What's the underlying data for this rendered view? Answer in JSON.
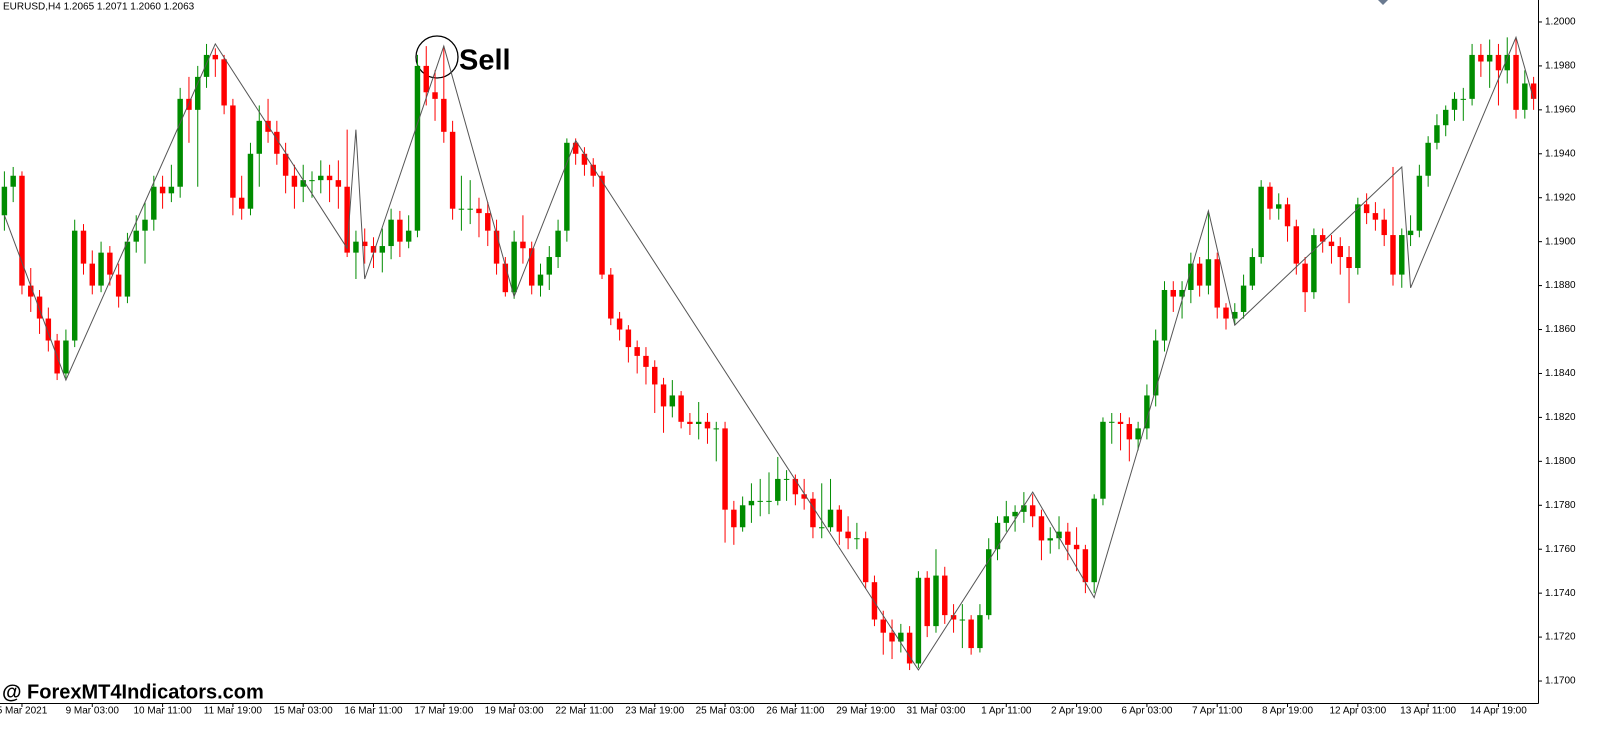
{
  "chart_data": {
    "type": "candlestick",
    "title": "EURUSD,H4  1.2065 1.2071 1.2060 1.2063",
    "watermark": "@ ForexMT4Indicators.com",
    "annotation": "Sell",
    "up_color": "#008c00",
    "down_color": "#ff0000",
    "ylim": [
      1.169,
      1.201
    ],
    "yticks": [
      {
        "value": 1.17,
        "label": "1.1700"
      },
      {
        "value": 1.172,
        "label": "1.1720"
      },
      {
        "value": 1.174,
        "label": "1.1740"
      },
      {
        "value": 1.176,
        "label": "1.1760"
      },
      {
        "value": 1.178,
        "label": "1.1780"
      },
      {
        "value": 1.18,
        "label": "1.1800"
      },
      {
        "value": 1.182,
        "label": "1.1820"
      },
      {
        "value": 1.184,
        "label": "1.1840"
      },
      {
        "value": 1.186,
        "label": "1.1860"
      },
      {
        "value": 1.188,
        "label": "1.1880"
      },
      {
        "value": 1.19,
        "label": "1.1900"
      },
      {
        "value": 1.192,
        "label": "1.1920"
      },
      {
        "value": 1.194,
        "label": "1.1940"
      },
      {
        "value": 1.196,
        "label": "1.1960"
      },
      {
        "value": 1.198,
        "label": "1.1980"
      },
      {
        "value": 1.2,
        "label": "1.2000"
      }
    ],
    "categories": [
      null,
      null,
      "5 Mar 2021",
      null,
      null,
      null,
      null,
      null,
      null,
      null,
      "9 Mar 03:00",
      null,
      null,
      null,
      null,
      null,
      null,
      null,
      "10 Mar 11:00",
      null,
      null,
      null,
      null,
      null,
      null,
      null,
      "11 Mar 19:00",
      null,
      null,
      null,
      null,
      null,
      null,
      null,
      "15 Mar 03:00",
      null,
      null,
      null,
      null,
      null,
      null,
      null,
      "16 Mar 11:00",
      null,
      null,
      null,
      null,
      null,
      null,
      null,
      "17 Mar 19:00",
      null,
      null,
      null,
      null,
      null,
      null,
      null,
      "19 Mar 03:00",
      null,
      null,
      null,
      null,
      null,
      null,
      null,
      "22 Mar 11:00",
      null,
      null,
      null,
      null,
      null,
      null,
      null,
      "23 Mar 19:00",
      null,
      null,
      null,
      null,
      null,
      null,
      null,
      "25 Mar 03:00",
      null,
      null,
      null,
      null,
      null,
      null,
      null,
      "26 Mar 11:00",
      null,
      null,
      null,
      null,
      null,
      null,
      null,
      "29 Mar 19:00",
      null,
      null,
      null,
      null,
      null,
      null,
      null,
      "31 Mar 03:00",
      null,
      null,
      null,
      null,
      null,
      null,
      null,
      "1 Apr 11:00",
      null,
      null,
      null,
      null,
      null,
      null,
      null,
      "2 Apr 19:00",
      null,
      null,
      null,
      null,
      null,
      null,
      null,
      "6 Apr 03:00",
      null,
      null,
      null,
      null,
      null,
      null,
      null,
      "7 Apr 11:00",
      null,
      null,
      null,
      null,
      null,
      null,
      null,
      "8 Apr 19:00",
      null,
      null,
      null,
      null,
      null,
      null,
      null,
      "12 Apr 03:00",
      null,
      null,
      null,
      null,
      null,
      null,
      null,
      "13 Apr 11:00",
      null,
      null,
      null,
      null,
      null,
      null,
      null,
      "14 Apr 19:00",
      null,
      null,
      null,
      null
    ],
    "ohlc": [
      [
        1.1912,
        1.1932,
        1.1905,
        1.1925
      ],
      [
        1.1925,
        1.1934,
        1.1918,
        1.193
      ],
      [
        1.193,
        1.1932,
        1.1876,
        1.188
      ],
      [
        1.188,
        1.1888,
        1.1868,
        1.1875
      ],
      [
        1.1875,
        1.1878,
        1.1858,
        1.1865
      ],
      [
        1.1865,
        1.187,
        1.185,
        1.1855
      ],
      [
        1.1855,
        1.1858,
        1.1837,
        1.184
      ],
      [
        1.184,
        1.186,
        1.1838,
        1.1855
      ],
      [
        1.1855,
        1.191,
        1.1852,
        1.1905
      ],
      [
        1.1905,
        1.1908,
        1.1885,
        1.189
      ],
      [
        1.189,
        1.1896,
        1.1876,
        1.188
      ],
      [
        1.188,
        1.19,
        1.1877,
        1.1895
      ],
      [
        1.1895,
        1.1898,
        1.188,
        1.1885
      ],
      [
        1.1885,
        1.189,
        1.187,
        1.1875
      ],
      [
        1.1875,
        1.1904,
        1.1872,
        1.19
      ],
      [
        1.19,
        1.1912,
        1.1895,
        1.1905
      ],
      [
        1.1905,
        1.1918,
        1.189,
        1.191
      ],
      [
        1.191,
        1.193,
        1.1905,
        1.1925
      ],
      [
        1.1925,
        1.193,
        1.1915,
        1.1922
      ],
      [
        1.1922,
        1.1935,
        1.1918,
        1.1925
      ],
      [
        1.1925,
        1.197,
        1.192,
        1.1965
      ],
      [
        1.1965,
        1.1975,
        1.1945,
        1.196
      ],
      [
        1.196,
        1.198,
        1.1925,
        1.1975
      ],
      [
        1.1975,
        1.199,
        1.197,
        1.1985
      ],
      [
        1.1985,
        1.1988,
        1.1975,
        1.1983
      ],
      [
        1.1983,
        1.1985,
        1.1958,
        1.1962
      ],
      [
        1.1962,
        1.1965,
        1.1912,
        1.192
      ],
      [
        1.192,
        1.193,
        1.191,
        1.1915
      ],
      [
        1.1915,
        1.1945,
        1.1912,
        1.194
      ],
      [
        1.194,
        1.1962,
        1.1925,
        1.1955
      ],
      [
        1.1955,
        1.1965,
        1.1945,
        1.195
      ],
      [
        1.195,
        1.1955,
        1.1935,
        1.194
      ],
      [
        1.194,
        1.1945,
        1.1922,
        1.193
      ],
      [
        1.193,
        1.1935,
        1.1915,
        1.1925
      ],
      [
        1.1925,
        1.1935,
        1.1918,
        1.1928
      ],
      [
        1.1928,
        1.1932,
        1.192,
        1.1928
      ],
      [
        1.1928,
        1.1937,
        1.1922,
        1.193
      ],
      [
        1.193,
        1.1935,
        1.1918,
        1.1928
      ],
      [
        1.1928,
        1.1937,
        1.1915,
        1.1925
      ],
      [
        1.1925,
        1.1951,
        1.1893,
        1.1895
      ],
      [
        1.1895,
        1.1905,
        1.1883,
        1.19
      ],
      [
        1.19,
        1.1906,
        1.189,
        1.1898
      ],
      [
        1.1898,
        1.1902,
        1.1888,
        1.1895
      ],
      [
        1.1895,
        1.1906,
        1.1886,
        1.1898
      ],
      [
        1.1898,
        1.1915,
        1.1892,
        1.191
      ],
      [
        1.191,
        1.1914,
        1.1893,
        1.19
      ],
      [
        1.19,
        1.1912,
        1.1897,
        1.1905
      ],
      [
        1.1905,
        1.1985,
        1.1902,
        1.198
      ],
      [
        1.198,
        1.1989,
        1.1962,
        1.1968
      ],
      [
        1.1968,
        1.1978,
        1.1955,
        1.1965
      ],
      [
        1.1965,
        1.1989,
        1.1945,
        1.195
      ],
      [
        1.195,
        1.1955,
        1.191,
        1.1915
      ],
      [
        1.1915,
        1.193,
        1.1905,
        1.1915
      ],
      [
        1.1915,
        1.1928,
        1.1908,
        1.1915
      ],
      [
        1.1915,
        1.192,
        1.1902,
        1.1913
      ],
      [
        1.1913,
        1.1918,
        1.1898,
        1.1905
      ],
      [
        1.1905,
        1.191,
        1.1885,
        1.189
      ],
      [
        1.189,
        1.1893,
        1.1875,
        1.1877
      ],
      [
        1.1877,
        1.1905,
        1.1874,
        1.19
      ],
      [
        1.19,
        1.1912,
        1.189,
        1.1897
      ],
      [
        1.1897,
        1.19,
        1.1876,
        1.188
      ],
      [
        1.188,
        1.189,
        1.1875,
        1.1885
      ],
      [
        1.1885,
        1.1898,
        1.1878,
        1.1893
      ],
      [
        1.1893,
        1.191,
        1.1888,
        1.1905
      ],
      [
        1.1905,
        1.1947,
        1.19,
        1.1945
      ],
      [
        1.1945,
        1.1947,
        1.1935,
        1.194
      ],
      [
        1.194,
        1.1943,
        1.193,
        1.1935
      ],
      [
        1.1935,
        1.1938,
        1.1925,
        1.193
      ],
      [
        1.193,
        1.1932,
        1.1883,
        1.1885
      ],
      [
        1.1885,
        1.1888,
        1.1862,
        1.1865
      ],
      [
        1.1865,
        1.1868,
        1.1855,
        1.186
      ],
      [
        1.186,
        1.1862,
        1.1845,
        1.1852
      ],
      [
        1.1852,
        1.1855,
        1.184,
        1.1848
      ],
      [
        1.1848,
        1.1852,
        1.1835,
        1.1843
      ],
      [
        1.1843,
        1.1846,
        1.1822,
        1.1835
      ],
      [
        1.1835,
        1.1838,
        1.1813,
        1.1825
      ],
      [
        1.1825,
        1.1837,
        1.182,
        1.183
      ],
      [
        1.183,
        1.1832,
        1.1815,
        1.1818
      ],
      [
        1.1818,
        1.1822,
        1.1812,
        1.1817
      ],
      [
        1.1817,
        1.1827,
        1.181,
        1.1818
      ],
      [
        1.1818,
        1.1822,
        1.1808,
        1.1815
      ],
      [
        1.1815,
        1.1818,
        1.18,
        1.1815
      ],
      [
        1.1815,
        1.1818,
        1.1763,
        1.1778
      ],
      [
        1.1778,
        1.1782,
        1.1762,
        1.177
      ],
      [
        1.177,
        1.1784,
        1.1768,
        1.178
      ],
      [
        1.178,
        1.179,
        1.1772,
        1.1782
      ],
      [
        1.1782,
        1.1792,
        1.1775,
        1.1782
      ],
      [
        1.1782,
        1.1795,
        1.1776,
        1.1782
      ],
      [
        1.1782,
        1.1802,
        1.178,
        1.1792
      ],
      [
        1.1792,
        1.1796,
        1.1782,
        1.1792
      ],
      [
        1.1792,
        1.1794,
        1.178,
        1.1785
      ],
      [
        1.1785,
        1.1792,
        1.1778,
        1.1783
      ],
      [
        1.1783,
        1.1786,
        1.1765,
        1.177
      ],
      [
        1.177,
        1.179,
        1.1765,
        1.177
      ],
      [
        1.177,
        1.1792,
        1.1768,
        1.1778
      ],
      [
        1.1778,
        1.178,
        1.1762,
        1.1768
      ],
      [
        1.1768,
        1.1775,
        1.176,
        1.1765
      ],
      [
        1.1765,
        1.1772,
        1.176,
        1.1765
      ],
      [
        1.1765,
        1.1768,
        1.1742,
        1.1745
      ],
      [
        1.1745,
        1.1748,
        1.1725,
        1.1728
      ],
      [
        1.1728,
        1.1732,
        1.1712,
        1.1722
      ],
      [
        1.1722,
        1.1728,
        1.171,
        1.1718
      ],
      [
        1.1718,
        1.1726,
        1.1713,
        1.1722
      ],
      [
        1.1722,
        1.1725,
        1.1705,
        1.1708
      ],
      [
        1.1708,
        1.175,
        1.1706,
        1.1747
      ],
      [
        1.1747,
        1.175,
        1.172,
        1.1725
      ],
      [
        1.1725,
        1.176,
        1.1722,
        1.1748
      ],
      [
        1.1748,
        1.1752,
        1.1726,
        1.173
      ],
      [
        1.173,
        1.1735,
        1.1722,
        1.1728
      ],
      [
        1.1728,
        1.1735,
        1.1715,
        1.1728
      ],
      [
        1.1728,
        1.173,
        1.1712,
        1.1715
      ],
      [
        1.1715,
        1.1735,
        1.1713,
        1.173
      ],
      [
        1.173,
        1.1765,
        1.1728,
        1.176
      ],
      [
        1.176,
        1.1775,
        1.1755,
        1.1772
      ],
      [
        1.1772,
        1.1782,
        1.1768,
        1.1775
      ],
      [
        1.1775,
        1.178,
        1.1768,
        1.1777
      ],
      [
        1.1777,
        1.1786,
        1.1772,
        1.178
      ],
      [
        1.178,
        1.1785,
        1.177,
        1.1775
      ],
      [
        1.1775,
        1.1778,
        1.1755,
        1.1764
      ],
      [
        1.1764,
        1.177,
        1.1758,
        1.1765
      ],
      [
        1.1765,
        1.1775,
        1.176,
        1.1768
      ],
      [
        1.1768,
        1.1772,
        1.1755,
        1.1762
      ],
      [
        1.1762,
        1.177,
        1.175,
        1.176
      ],
      [
        1.176,
        1.1762,
        1.174,
        1.1745
      ],
      [
        1.1745,
        1.1785,
        1.174,
        1.1783
      ],
      [
        1.1783,
        1.182,
        1.178,
        1.1818
      ],
      [
        1.1818,
        1.1822,
        1.1808,
        1.1818
      ],
      [
        1.1818,
        1.1822,
        1.1805,
        1.1817
      ],
      [
        1.1817,
        1.182,
        1.18,
        1.181
      ],
      [
        1.181,
        1.1818,
        1.1805,
        1.1815
      ],
      [
        1.1815,
        1.1835,
        1.181,
        1.183
      ],
      [
        1.183,
        1.186,
        1.1825,
        1.1855
      ],
      [
        1.1855,
        1.1882,
        1.185,
        1.1878
      ],
      [
        1.1878,
        1.1882,
        1.1868,
        1.1875
      ],
      [
        1.1875,
        1.1882,
        1.1865,
        1.1878
      ],
      [
        1.1878,
        1.1895,
        1.1872,
        1.189
      ],
      [
        1.189,
        1.1893,
        1.1875,
        1.188
      ],
      [
        1.188,
        1.1914,
        1.1876,
        1.1892
      ],
      [
        1.1892,
        1.1895,
        1.1865,
        1.187
      ],
      [
        1.187,
        1.1872,
        1.186,
        1.1865
      ],
      [
        1.1865,
        1.1872,
        1.1862,
        1.1868
      ],
      [
        1.1868,
        1.1885,
        1.1865,
        1.188
      ],
      [
        1.188,
        1.1897,
        1.1878,
        1.1893
      ],
      [
        1.1893,
        1.1928,
        1.189,
        1.1925
      ],
      [
        1.1925,
        1.1927,
        1.191,
        1.1915
      ],
      [
        1.1915,
        1.1922,
        1.191,
        1.1917
      ],
      [
        1.1917,
        1.192,
        1.19,
        1.1907
      ],
      [
        1.1907,
        1.191,
        1.1885,
        1.189
      ],
      [
        1.189,
        1.1893,
        1.1868,
        1.1877
      ],
      [
        1.1877,
        1.1906,
        1.1874,
        1.1903
      ],
      [
        1.1903,
        1.1906,
        1.1895,
        1.19
      ],
      [
        1.19,
        1.1903,
        1.189,
        1.1898
      ],
      [
        1.1898,
        1.1902,
        1.1885,
        1.1893
      ],
      [
        1.1893,
        1.1898,
        1.1872,
        1.1888
      ],
      [
        1.1888,
        1.192,
        1.1885,
        1.1917
      ],
      [
        1.1917,
        1.1922,
        1.1908,
        1.1913
      ],
      [
        1.1913,
        1.1918,
        1.1905,
        1.191
      ],
      [
        1.191,
        1.1915,
        1.1898,
        1.1903
      ],
      [
        1.1903,
        1.1934,
        1.188,
        1.1885
      ],
      [
        1.1885,
        1.1906,
        1.1879,
        1.1903
      ],
      [
        1.1903,
        1.1912,
        1.1898,
        1.1905
      ],
      [
        1.1905,
        1.1935,
        1.1902,
        1.193
      ],
      [
        1.193,
        1.1948,
        1.1925,
        1.1945
      ],
      [
        1.1945,
        1.1958,
        1.1942,
        1.1953
      ],
      [
        1.1953,
        1.1962,
        1.1948,
        1.196
      ],
      [
        1.196,
        1.1968,
        1.1955,
        1.1965
      ],
      [
        1.1965,
        1.197,
        1.1955,
        1.1965
      ],
      [
        1.1965,
        1.199,
        1.1962,
        1.1985
      ],
      [
        1.1985,
        1.199,
        1.1975,
        1.1982
      ],
      [
        1.1982,
        1.1992,
        1.197,
        1.1985
      ],
      [
        1.1985,
        1.199,
        1.1962,
        1.1978
      ],
      [
        1.1978,
        1.1993,
        1.1972,
        1.1985
      ],
      [
        1.1985,
        1.1993,
        1.1956,
        1.196
      ],
      [
        1.196,
        1.1978,
        1.1956,
        1.1972
      ],
      [
        1.1972,
        1.1975,
        1.196,
        1.1965
      ]
    ],
    "zigzag": {
      "color": "#555555",
      "x": [
        0,
        7,
        24,
        39,
        40,
        41,
        50,
        58,
        65,
        104,
        117,
        124,
        137,
        140,
        159,
        160,
        172,
        174
      ],
      "values": [
        1.1912,
        1.1837,
        1.199,
        1.1897,
        1.1951,
        1.1883,
        1.1989,
        1.1875,
        1.1946,
        1.1705,
        1.1786,
        1.1738,
        1.1914,
        1.1862,
        1.1934,
        1.1879,
        1.1993,
        1.1965
      ]
    }
  }
}
